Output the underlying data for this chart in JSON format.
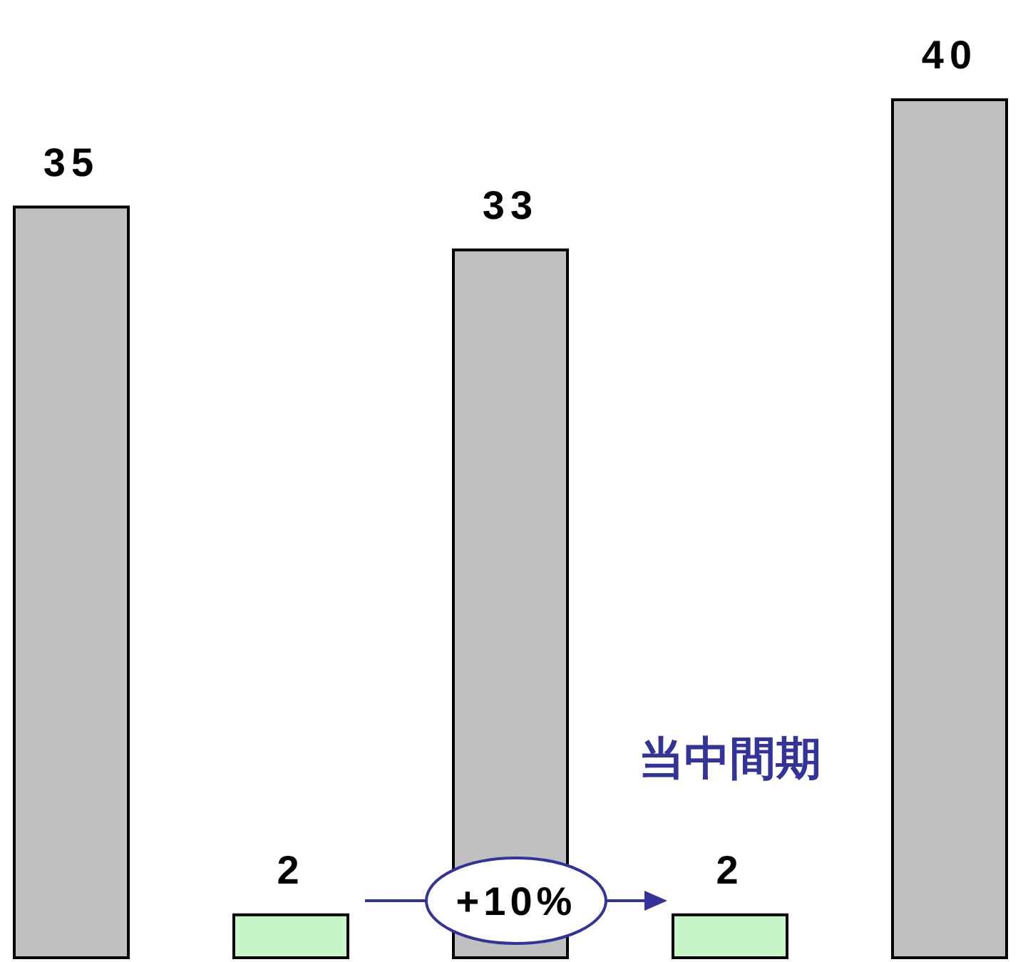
{
  "chart_data": {
    "type": "bar",
    "categories": [
      null,
      null,
      null,
      null,
      null
    ],
    "values": [
      35,
      2,
      33,
      2,
      40
    ],
    "colors": [
      "#c0c0c0",
      "#c8f5c8",
      "#c0c0c0",
      "#c8f5c8",
      "#c0c0c0"
    ],
    "data_labels": true,
    "annotations": [
      "+10%",
      "当中間期"
    ]
  }
}
